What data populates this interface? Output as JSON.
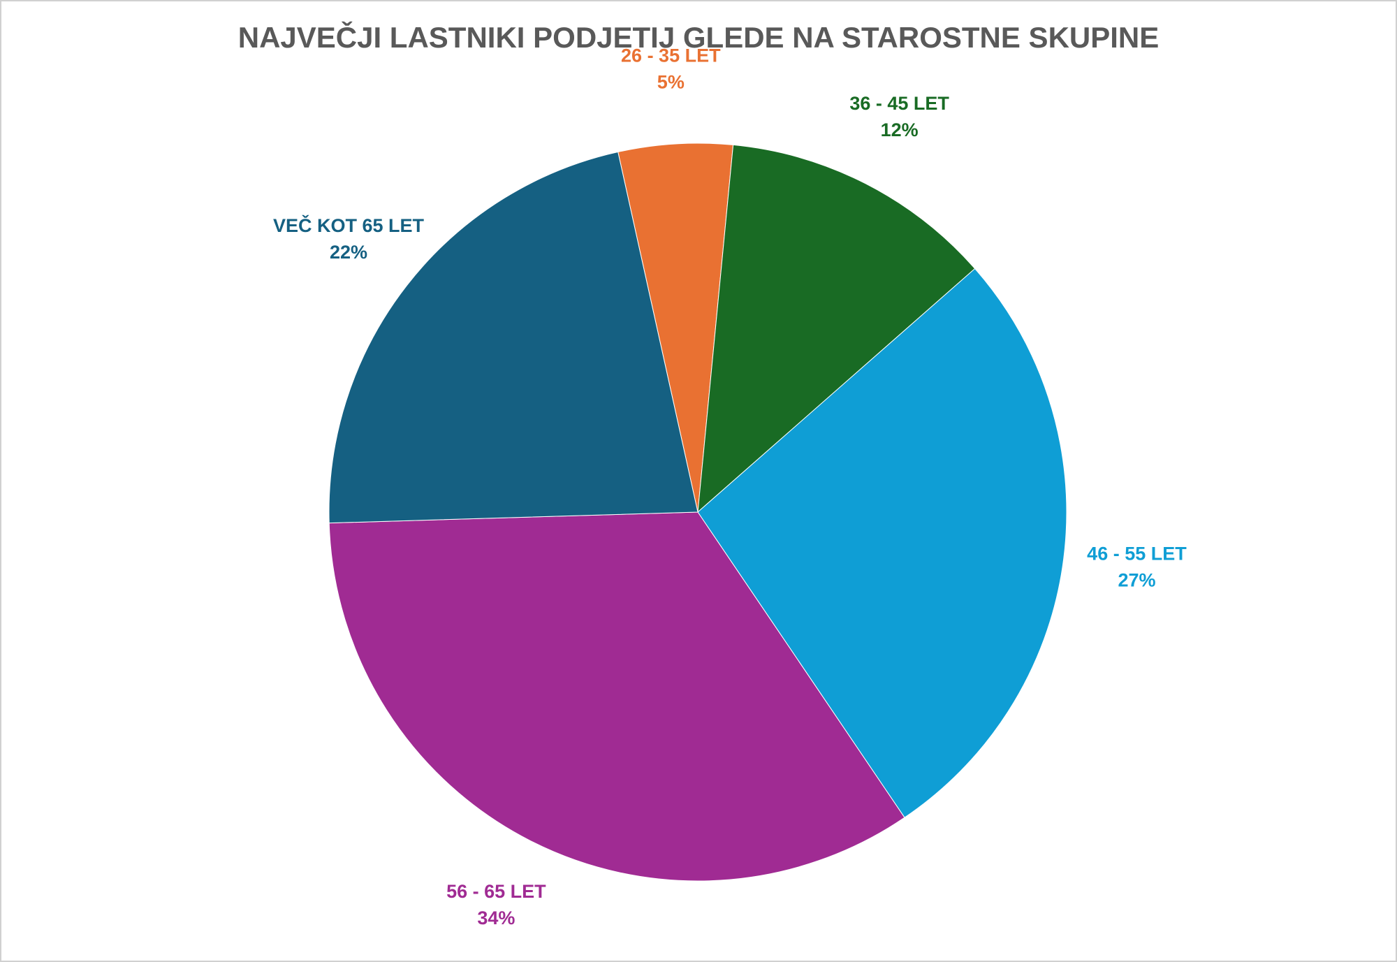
{
  "chart_data": {
    "type": "pie",
    "title": "NAJVEČJI LASTNIKI PODJETIJ GLEDE NA STAROSTNE SKUPINE",
    "categories": [
      "26 - 35 LET",
      "36 - 45 LET",
      "46 - 55 LET",
      "56 - 65 LET",
      "VEČ KOT 65 LET"
    ],
    "values": [
      5,
      12,
      27,
      34,
      22
    ],
    "value_labels": [
      "5%",
      "12%",
      "27%",
      "34%",
      "22%"
    ],
    "colors": [
      "#E97132",
      "#196B24",
      "#0F9ED5",
      "#A02B93",
      "#156082"
    ]
  }
}
